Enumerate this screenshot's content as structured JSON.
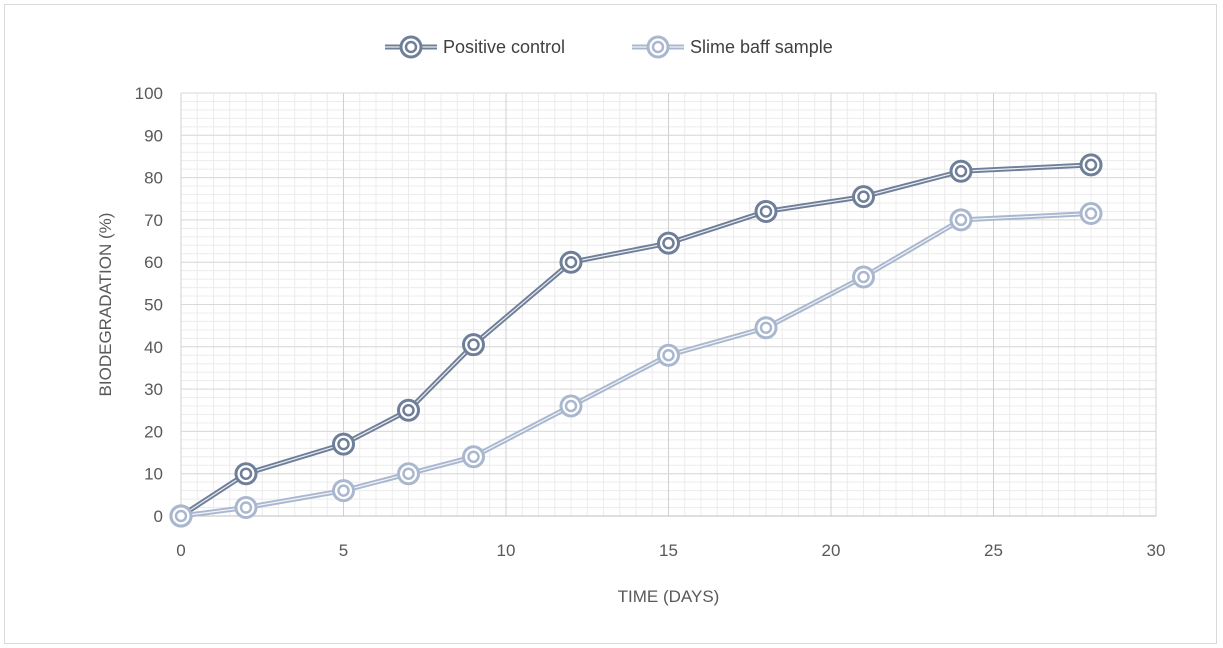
{
  "chart_data": {
    "type": "line",
    "title": "",
    "xlabel": "TIME (DAYS)",
    "ylabel": "BIODEGRADATION (%)",
    "xlim": [
      0,
      30
    ],
    "ylim": [
      0,
      100
    ],
    "x_ticks": [
      0,
      5,
      10,
      15,
      20,
      25,
      30
    ],
    "y_ticks": [
      0,
      10,
      20,
      30,
      40,
      50,
      60,
      70,
      80,
      90,
      100
    ],
    "grid": true,
    "legend_position": "top",
    "series": [
      {
        "name": "Positive control",
        "color": "#6f7f99",
        "x": [
          0,
          2,
          5,
          7,
          9,
          12,
          15,
          18,
          21,
          24,
          28
        ],
        "y": [
          0,
          10,
          17,
          25,
          40.5,
          60,
          64.5,
          72,
          75.5,
          81.5,
          83
        ]
      },
      {
        "name": "Slime baff sample",
        "color": "#a9b7cf",
        "x": [
          0,
          2,
          5,
          7,
          9,
          12,
          15,
          18,
          21,
          24,
          28
        ],
        "y": [
          0,
          2,
          6,
          10,
          14,
          26,
          38,
          44.5,
          56.5,
          70,
          71.5
        ]
      }
    ]
  }
}
